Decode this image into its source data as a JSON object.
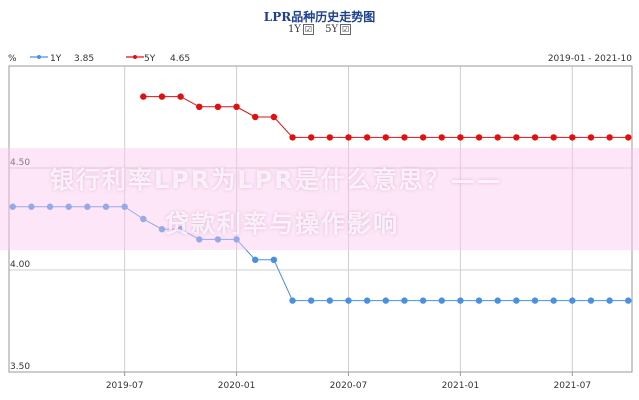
{
  "chart_data": {
    "type": "line",
    "title": "LPR品种历史走势图",
    "ylabel": "%",
    "range_label": "2019-01 - 2021-10",
    "ylim": [
      3.5,
      5.0
    ],
    "y_ticks": [
      "3.50",
      "4.00",
      "4.50"
    ],
    "x_ticks": [
      "2019-07",
      "2020-01",
      "2020-07",
      "2021-01",
      "2021-07"
    ],
    "x_start": "2019-01",
    "x_end": "2021-10",
    "legend_position": "top-left",
    "grid": true,
    "series": [
      {
        "name": "1Y",
        "latest": "3.85",
        "color": "#4a90e2",
        "x": [
          "2019-01",
          "2019-02",
          "2019-03",
          "2019-04",
          "2019-05",
          "2019-06",
          "2019-07",
          "2019-08",
          "2019-09",
          "2019-10",
          "2019-11",
          "2019-12",
          "2020-01",
          "2020-02",
          "2020-03",
          "2020-04",
          "2020-05",
          "2020-06",
          "2020-07",
          "2020-08",
          "2020-09",
          "2020-10",
          "2020-11",
          "2020-12",
          "2021-01",
          "2021-02",
          "2021-03",
          "2021-04",
          "2021-05",
          "2021-06",
          "2021-07",
          "2021-08",
          "2021-09",
          "2021-10"
        ],
        "values": [
          4.31,
          4.31,
          4.31,
          4.31,
          4.31,
          4.31,
          4.31,
          4.25,
          4.2,
          4.2,
          4.15,
          4.15,
          4.15,
          4.05,
          4.05,
          3.85,
          3.85,
          3.85,
          3.85,
          3.85,
          3.85,
          3.85,
          3.85,
          3.85,
          3.85,
          3.85,
          3.85,
          3.85,
          3.85,
          3.85,
          3.85,
          3.85,
          3.85,
          3.85
        ]
      },
      {
        "name": "5Y",
        "latest": "4.65",
        "color": "#e01010",
        "x": [
          "2019-08",
          "2019-09",
          "2019-10",
          "2019-11",
          "2019-12",
          "2020-01",
          "2020-02",
          "2020-03",
          "2020-04",
          "2020-05",
          "2020-06",
          "2020-07",
          "2020-08",
          "2020-09",
          "2020-10",
          "2020-11",
          "2020-12",
          "2021-01",
          "2021-02",
          "2021-03",
          "2021-04",
          "2021-05",
          "2021-06",
          "2021-07",
          "2021-08",
          "2021-09",
          "2021-10"
        ],
        "values": [
          4.85,
          4.85,
          4.85,
          4.8,
          4.8,
          4.8,
          4.75,
          4.75,
          4.65,
          4.65,
          4.65,
          4.65,
          4.65,
          4.65,
          4.65,
          4.65,
          4.65,
          4.65,
          4.65,
          4.65,
          4.65,
          4.65,
          4.65,
          4.65,
          4.65,
          4.65,
          4.65
        ]
      }
    ]
  },
  "toggles": [
    {
      "label": "1Y",
      "checked": true
    },
    {
      "label": "5Y",
      "checked": true
    }
  ],
  "watermark": {
    "line1": "银行利率LPR为LPR是什么意思？——",
    "line2": "贷款利率与操作影响"
  },
  "checkbox_glyph": "☑"
}
